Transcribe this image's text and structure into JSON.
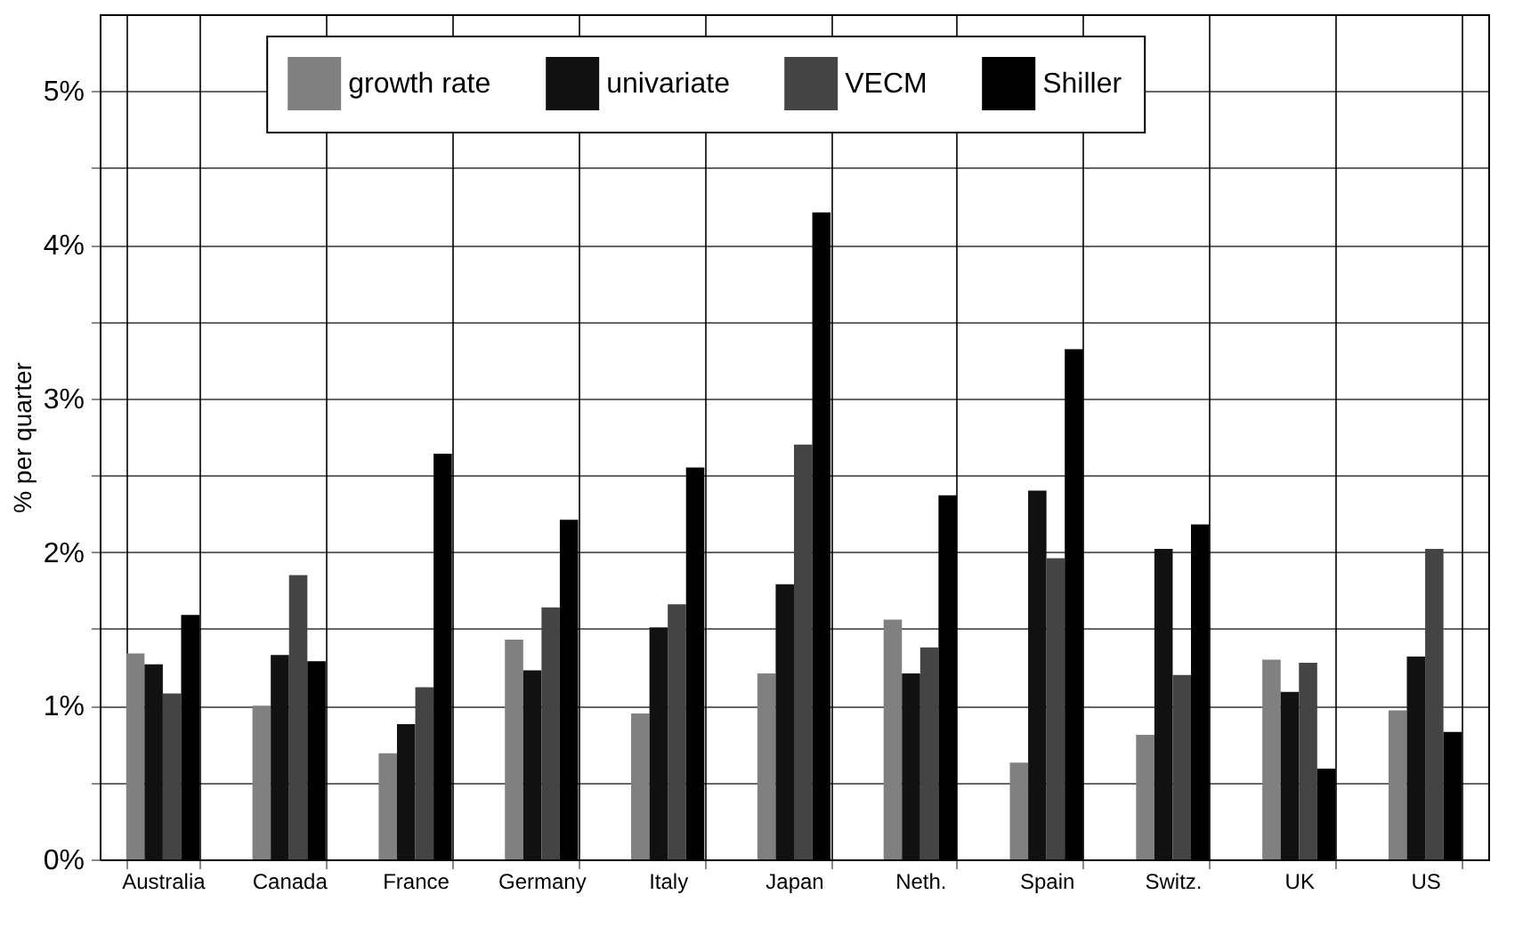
{
  "chart_data": {
    "type": "bar",
    "ylabel": "% per quarter",
    "categories": [
      "Australia",
      "Canada",
      "France",
      "Germany",
      "Italy",
      "Japan",
      "Neth.",
      "Spain",
      "Switz.",
      "UK",
      "US"
    ],
    "series": [
      {
        "name": "growth rate",
        "color": "#808080",
        "values": [
          1.34,
          1.0,
          0.69,
          1.43,
          0.95,
          1.21,
          1.56,
          0.63,
          0.81,
          1.3,
          0.97
        ]
      },
      {
        "name": "univariate",
        "color": "#111111",
        "values": [
          1.27,
          1.33,
          0.88,
          1.23,
          1.51,
          1.79,
          1.21,
          2.4,
          2.02,
          1.09,
          1.32
        ]
      },
      {
        "name": "VECM",
        "color": "#444444",
        "values": [
          1.08,
          1.85,
          1.12,
          1.64,
          1.66,
          2.7,
          1.38,
          1.96,
          1.2,
          1.28,
          2.02
        ]
      },
      {
        "name": "Shiller",
        "color": "#000000",
        "values": [
          1.59,
          1.29,
          2.64,
          2.21,
          2.55,
          4.21,
          2.37,
          3.32,
          2.18,
          0.59,
          0.83
        ]
      }
    ],
    "ylim": [
      0,
      5.5
    ],
    "yticks": [
      {
        "value": 0,
        "label": "0%"
      },
      {
        "value": 0.5,
        "label": null
      },
      {
        "value": 1,
        "label": "1%"
      },
      {
        "value": 1.5,
        "label": null
      },
      {
        "value": 2,
        "label": "2%"
      },
      {
        "value": 2.5,
        "label": null
      },
      {
        "value": 3,
        "label": "3%"
      },
      {
        "value": 3.5,
        "label": null
      },
      {
        "value": 4,
        "label": "4%"
      },
      {
        "value": 4.5,
        "label": null
      },
      {
        "value": 5,
        "label": "5%"
      }
    ],
    "grid": true,
    "legend": "top"
  }
}
